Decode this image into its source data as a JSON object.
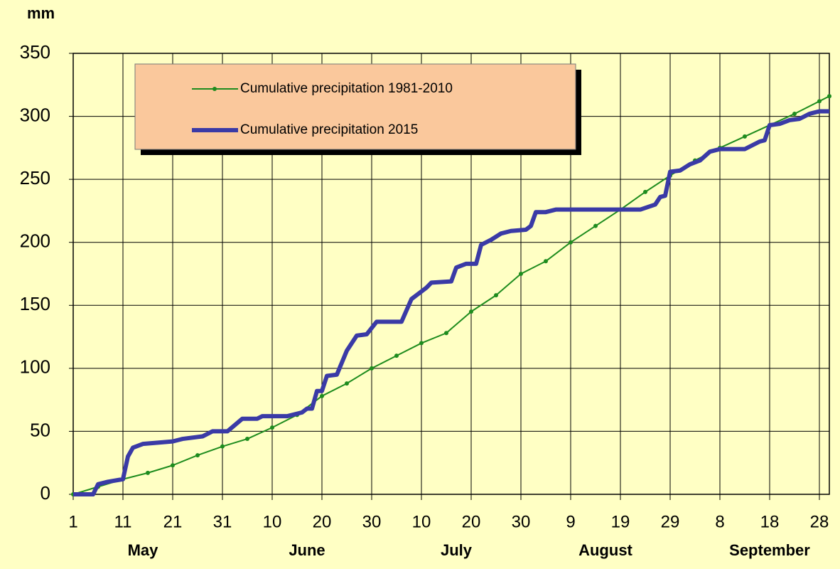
{
  "chart_data": {
    "type": "line",
    "y_label": "mm",
    "xlim": [
      0,
      152
    ],
    "xticks": [
      {
        "value": 0,
        "label": "1"
      },
      {
        "value": 10,
        "label": "11"
      },
      {
        "value": 20,
        "label": "21"
      },
      {
        "value": 30,
        "label": "31"
      },
      {
        "value": 40,
        "label": "10"
      },
      {
        "value": 50,
        "label": "20"
      },
      {
        "value": 60,
        "label": "30"
      },
      {
        "value": 70,
        "label": "10"
      },
      {
        "value": 80,
        "label": "20"
      },
      {
        "value": 90,
        "label": "30"
      },
      {
        "value": 100,
        "label": "9"
      },
      {
        "value": 110,
        "label": "19"
      },
      {
        "value": 120,
        "label": "29"
      },
      {
        "value": 130,
        "label": "8"
      },
      {
        "value": 140,
        "label": "18"
      },
      {
        "value": 150,
        "label": "28"
      }
    ],
    "month_labels": [
      {
        "value": 14,
        "label": "May"
      },
      {
        "value": 47,
        "label": "June"
      },
      {
        "value": 77,
        "label": "July"
      },
      {
        "value": 107,
        "label": "August"
      },
      {
        "value": 140,
        "label": "September"
      }
    ],
    "ylim": [
      0,
      350
    ],
    "yticks": [
      0,
      50,
      100,
      150,
      200,
      250,
      300,
      350
    ],
    "grid": true,
    "series": [
      {
        "name": "Cumulative precipitation 1981-2010",
        "color": "#1e8c1e",
        "markers": true,
        "x": [
          0,
          5,
          10,
          15,
          20,
          25,
          30,
          35,
          40,
          45,
          50,
          55,
          60,
          65,
          70,
          75,
          80,
          85,
          90,
          95,
          100,
          105,
          110,
          115,
          120,
          125,
          130,
          135,
          140,
          145,
          150,
          152
        ],
        "values": [
          0,
          6,
          12,
          17,
          23,
          31,
          38,
          44,
          53,
          63,
          78,
          88,
          100,
          110,
          120,
          128,
          145,
          158,
          175,
          185,
          200,
          213,
          226,
          240,
          253,
          265,
          275,
          284,
          293,
          302,
          312,
          316
        ]
      },
      {
        "name": "Cumulative precipitation 2015",
        "color": "#3a3aa6",
        "markers": false,
        "x": [
          0,
          4,
          5,
          7,
          10,
          11,
          12,
          14,
          20,
          22,
          26,
          28,
          31,
          34,
          37,
          38,
          43,
          46,
          47,
          48,
          49,
          50,
          51,
          53,
          55,
          57,
          59,
          61,
          66,
          68,
          71,
          72,
          76,
          77,
          79,
          81,
          82,
          84,
          86,
          88,
          91,
          92,
          93,
          95,
          97,
          114,
          117,
          118,
          119,
          120,
          122,
          124,
          126,
          128,
          130,
          135,
          138,
          139,
          140,
          142,
          144,
          146,
          148,
          150,
          152
        ],
        "values": [
          0,
          0,
          8,
          10,
          12,
          30,
          37,
          40,
          42,
          44,
          46,
          50,
          50,
          60,
          60,
          62,
          62,
          65,
          68,
          68,
          82,
          82,
          94,
          95,
          114,
          126,
          127,
          137,
          137,
          155,
          164,
          168,
          169,
          180,
          183,
          183,
          198,
          202,
          207,
          209,
          210,
          213,
          224,
          224,
          226,
          226,
          230,
          236,
          237,
          256,
          257,
          262,
          265,
          272,
          274,
          274,
          280,
          281,
          293,
          294,
          297,
          298,
          302,
          304,
          304
        ]
      }
    ]
  }
}
